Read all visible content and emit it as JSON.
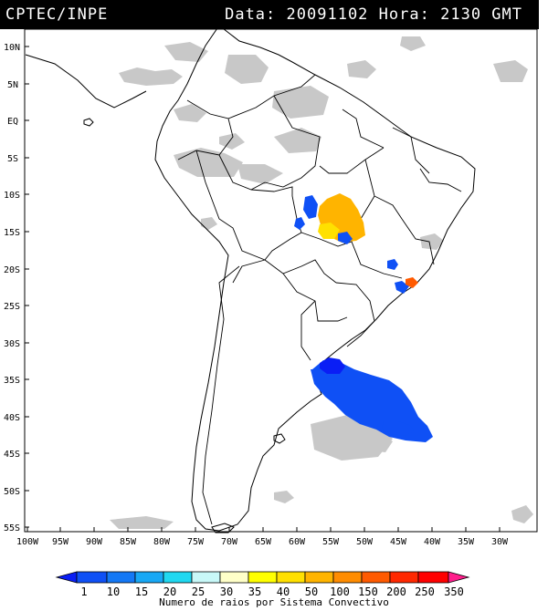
{
  "header": {
    "agency": "CPTEC/INPE",
    "date_label": "Data:",
    "date_value": "20091102",
    "time_label": "Hora:",
    "time_value": "2130 GMT"
  },
  "map": {
    "lon_ticks": [
      "100W",
      "95W",
      "90W",
      "85W",
      "80W",
      "75W",
      "70W",
      "65W",
      "60W",
      "55W",
      "50W",
      "45W",
      "40W",
      "35W",
      "30W"
    ],
    "lat_ticks": [
      "10N",
      "5N",
      "EQ",
      "5S",
      "10S",
      "15S",
      "20S",
      "25S",
      "30S",
      "35S",
      "40S",
      "45S",
      "50S",
      "55S"
    ]
  },
  "colorbar": {
    "ticks": [
      "1",
      "10",
      "15",
      "20",
      "25",
      "30",
      "35",
      "40",
      "50",
      "100",
      "150",
      "200",
      "250",
      "350"
    ],
    "colors": [
      "#0a1ef5",
      "#0f50f5",
      "#1478f5",
      "#18a8f5",
      "#20d8f0",
      "#c8f8f8",
      "#ffffc8",
      "#ffff00",
      "#ffe000",
      "#ffb400",
      "#ff8c00",
      "#ff5a00",
      "#ff2800",
      "#ff0000",
      "#ff1e8c"
    ],
    "label": "Numero de raios por Sistema Convectivo"
  }
}
